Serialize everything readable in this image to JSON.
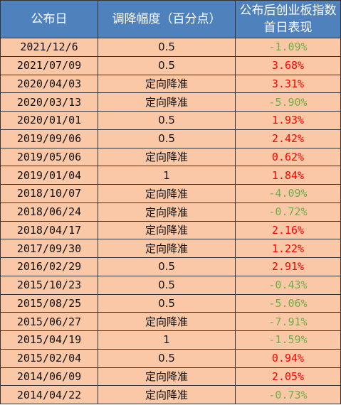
{
  "colors": {
    "header_bg": "#4f81bd",
    "header_text": "#ffffff",
    "row_bg": "#fac8a6",
    "positive": "#ff0000",
    "negative": "#70ad47"
  },
  "table": {
    "headers": {
      "date": "公布日",
      "cut": "调降幅度（百分点）",
      "ret": "公布后创业板指数首日表现"
    },
    "rows": [
      {
        "date": "2021/12/6",
        "cut": "0.5",
        "ret": "-1.09%",
        "sign": "neg"
      },
      {
        "date": "2021/07/09",
        "cut": "0.5",
        "ret": "3.68%",
        "sign": "pos"
      },
      {
        "date": "2020/04/03",
        "cut": "定向降准",
        "ret": "3.31%",
        "sign": "pos"
      },
      {
        "date": "2020/03/13",
        "cut": "定向降准",
        "ret": "-5.90%",
        "sign": "neg"
      },
      {
        "date": "2020/01/01",
        "cut": "0.5",
        "ret": "1.93%",
        "sign": "pos"
      },
      {
        "date": "2019/09/06",
        "cut": "0.5",
        "ret": "2.42%",
        "sign": "pos"
      },
      {
        "date": "2019/05/06",
        "cut": "定向降准",
        "ret": "0.62%",
        "sign": "pos"
      },
      {
        "date": "2019/01/04",
        "cut": "1",
        "ret": "1.84%",
        "sign": "pos"
      },
      {
        "date": "2018/10/07",
        "cut": "定向降准",
        "ret": "-4.09%",
        "sign": "neg"
      },
      {
        "date": "2018/06/24",
        "cut": "定向降准",
        "ret": "-0.72%",
        "sign": "neg"
      },
      {
        "date": "2018/04/17",
        "cut": "定向降准",
        "ret": "2.16%",
        "sign": "pos"
      },
      {
        "date": "2017/09/30",
        "cut": "定向降准",
        "ret": "1.22%",
        "sign": "pos"
      },
      {
        "date": "2016/02/29",
        "cut": "0.5",
        "ret": "2.91%",
        "sign": "pos"
      },
      {
        "date": "2015/10/23",
        "cut": "0.5",
        "ret": "-0.43%",
        "sign": "neg"
      },
      {
        "date": "2015/08/25",
        "cut": "0.5",
        "ret": "-5.06%",
        "sign": "neg"
      },
      {
        "date": "2015/06/27",
        "cut": "定向降准",
        "ret": "-7.91%",
        "sign": "neg"
      },
      {
        "date": "2015/04/19",
        "cut": "1",
        "ret": "-1.59%",
        "sign": "neg"
      },
      {
        "date": "2015/02/04",
        "cut": "0.5",
        "ret": "0.94%",
        "sign": "pos"
      },
      {
        "date": "2014/06/09",
        "cut": "定向降准",
        "ret": "2.05%",
        "sign": "pos"
      },
      {
        "date": "2014/04/22",
        "cut": "定向降准",
        "ret": "-0.73%",
        "sign": "neg"
      }
    ]
  }
}
